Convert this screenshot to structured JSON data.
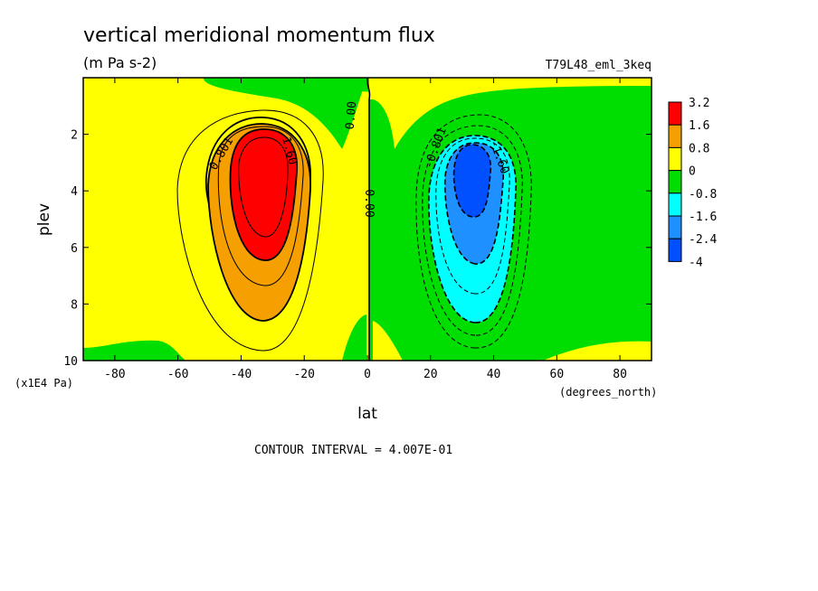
{
  "colors": {
    "c_3.2": "#ff0000",
    "c_1.6": "#f5a000",
    "c_0.8": "#ffff00",
    "c_0": "#00dd00",
    "c_-0.8": "#00ffff",
    "c_-1.6": "#1e90ff",
    "c_-2.4": "#0050ff",
    "frame": "#000000"
  },
  "chart_data": {
    "type": "heatmap",
    "title": "vertical meridional momentum flux",
    "subtitle": "(m Pa s-2)",
    "run_label": "T79L48_eml_3keq",
    "xlabel": "lat",
    "x_units": "(degrees_north)",
    "ylabel": "plev",
    "y_units": "(x1E4 Pa)",
    "xlim": [
      -90,
      90
    ],
    "ylim": [
      10,
      0
    ],
    "x_ticks": [
      -80,
      -60,
      -40,
      -20,
      0,
      20,
      40,
      60,
      80
    ],
    "y_ticks": [
      2,
      4,
      6,
      8,
      10
    ],
    "x_tick_labels": [
      "-80",
      "-60",
      "-40",
      "-20",
      "0",
      "20",
      "40",
      "60",
      "80"
    ],
    "y_tick_labels": [
      "2",
      "4",
      "6",
      "8",
      "10"
    ],
    "colorbar_labels": [
      "3.2",
      "1.6",
      "0.8",
      "0",
      "-0.8",
      "-1.6",
      "-2.4",
      "-4"
    ],
    "contour_labels": [
      "0.801",
      "1.60",
      "0.00",
      "0.00",
      "-0.801",
      "-1.60"
    ],
    "contour_interval_text": "CONTOUR INTERVAL = 4.007E-01",
    "features": [
      {
        "sign": "positive",
        "center_lat": -33,
        "center_plev": 3.8,
        "peak": 3.2
      },
      {
        "sign": "negative",
        "center_lat": 33,
        "center_plev": 3.5,
        "peak": -2.4
      }
    ]
  }
}
